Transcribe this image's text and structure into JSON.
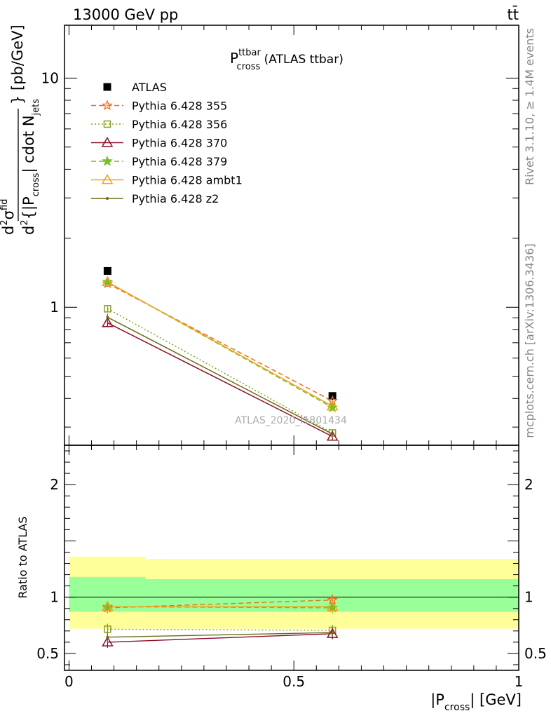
{
  "header": {
    "left": "13000 GeV pp",
    "right": "tt̄"
  },
  "side_labels": {
    "top": "Rivet 3.1.10, ≥ 1.4M events",
    "bottom": "mcplots.cern.ch [arXiv:1306.3436]"
  },
  "chart_data": [
    {
      "type": "line",
      "title_main": "P",
      "title_sup": "ttbar",
      "title_sub": "cross",
      "title_rest": " (ATLAS ttbar)",
      "watermark": "ATLAS_2020_I1801434",
      "yscale": "log",
      "ylim": [
        0.25,
        17
      ],
      "yticks": [
        1,
        10
      ],
      "ylabel": {
        "lead": "d",
        "numerator_sup": "2",
        "numerator": "σ",
        "numerator_sup2": "fid",
        "denominator_lead": "d",
        "denominator_sup": "2",
        "denominator_mid": "{|P",
        "denominator_sub": "cross",
        "denominator_mid2": "| cdot N",
        "denominator_sub2": "jets",
        "tail": "} [pb/GeV]"
      },
      "x": [
        0.0857,
        0.5857
      ],
      "series": [
        {
          "name": "ATLAS",
          "values": [
            1.44,
            0.41
          ],
          "color": "#000000",
          "marker": "filled-square",
          "line": "none"
        },
        {
          "name": "Pythia 6.428 355",
          "values": [
            1.27,
            0.39
          ],
          "color": "#f0701d",
          "marker": "open-star",
          "line": "dashed"
        },
        {
          "name": "Pythia 6.428 356",
          "values": [
            0.985,
            0.283
          ],
          "color": "#8a9e1a",
          "marker": "open-square",
          "line": "dotted"
        },
        {
          "name": "Pythia 6.428 370",
          "values": [
            0.855,
            0.273
          ],
          "color": "#8b0d2a",
          "marker": "open-triangle",
          "line": "solid"
        },
        {
          "name": "Pythia 6.428 379",
          "values": [
            1.29,
            0.365
          ],
          "color": "#7bbf24",
          "marker": "filled-star",
          "line": "dashed"
        },
        {
          "name": "Pythia 6.428 ambt1",
          "values": [
            1.29,
            0.37
          ],
          "color": "#f0a21d",
          "marker": "open-triangle",
          "line": "solid"
        },
        {
          "name": "Pythia 6.428 z2",
          "values": [
            0.905,
            0.28
          ],
          "color": "#6b6b1a",
          "marker": "dot",
          "line": "solid"
        }
      ],
      "legend_position": "top-left"
    },
    {
      "type": "line",
      "ylabel": "Ratio to ATLAS",
      "xlabel_main": "|P",
      "xlabel_sub": "cross",
      "xlabel_rest": "| [GeV]",
      "xlim": [
        -0.01,
        1.0
      ],
      "xticks": [
        0,
        0.5,
        1
      ],
      "xtick_labels": [
        "0",
        "0.5",
        "1"
      ],
      "ylim": [
        0.35,
        2.35
      ],
      "yticks": [
        0.5,
        1,
        2
      ],
      "ytick_labels": [
        "0.5",
        "1",
        "2"
      ],
      "x": [
        0.0857,
        0.5857
      ],
      "bands": {
        "inner": {
          "bins": [
            [
              0,
              0.17,
              0.87,
              1.18
            ],
            [
              0.17,
              1.0,
              0.87,
              1.16
            ]
          ],
          "color": "#99ff99"
        },
        "outer": {
          "bins": [
            [
              0,
              0.17,
              0.72,
              1.36
            ],
            [
              0.17,
              1.0,
              0.72,
              1.34
            ]
          ],
          "color": "#ffff99"
        }
      },
      "series": [
        {
          "name": "Pythia 6.428 355",
          "values": [
            0.905,
            0.975
          ]
        },
        {
          "name": "Pythia 6.428 356",
          "values": [
            0.715,
            0.705
          ]
        },
        {
          "name": "Pythia 6.428 370",
          "values": [
            0.6,
            0.675
          ]
        },
        {
          "name": "Pythia 6.428 379",
          "values": [
            0.915,
            0.905
          ]
        },
        {
          "name": "Pythia 6.428 ambt1",
          "values": [
            0.915,
            0.915
          ]
        },
        {
          "name": "Pythia 6.428 z2",
          "values": [
            0.645,
            0.685
          ]
        }
      ]
    }
  ]
}
